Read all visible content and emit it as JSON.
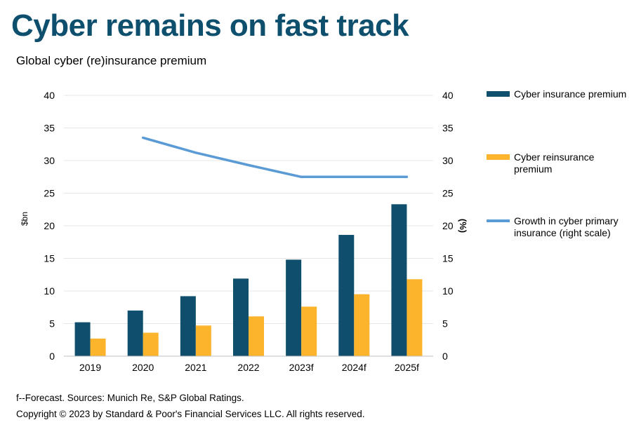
{
  "header": {
    "title": "Cyber remains on fast track",
    "subtitle": "Global cyber (re)insurance premium"
  },
  "footer": {
    "note": "f--Forecast. Sources: Munich Re, S&P Global Ratings.",
    "copyright": "Copyright © 2023 by Standard & Poor's Financial Services LLC. All rights reserved."
  },
  "colors": {
    "title": "#0e4f6e",
    "insurance": "#0f4f6d",
    "reinsurance": "#fbb42c",
    "growth": "#5b9bd5"
  },
  "chart_data": {
    "type": "bar",
    "categories": [
      "2019",
      "2020",
      "2021",
      "2022",
      "2023f",
      "2024f",
      "2025f"
    ],
    "series": [
      {
        "name": "Cyber insurance premium",
        "type": "bar",
        "axis": "left",
        "color": "#0f4f6d",
        "values": [
          5.2,
          7.0,
          9.2,
          11.9,
          14.8,
          18.6,
          23.3
        ]
      },
      {
        "name": "Cyber reinsurance premium",
        "type": "bar",
        "axis": "left",
        "color": "#fbb42c",
        "values": [
          2.7,
          3.6,
          4.7,
          6.1,
          7.6,
          9.5,
          11.8
        ]
      },
      {
        "name": "Growth in cyber primary insurance (right scale)",
        "type": "line",
        "axis": "right",
        "color": "#5b9bd5",
        "values": [
          null,
          33.5,
          31.2,
          29.3,
          27.5,
          27.5,
          27.5
        ]
      }
    ],
    "ylabel": "$bn",
    "ylabel_right": "(%)",
    "ylim": [
      0,
      40
    ],
    "ylim_right": [
      0,
      40
    ],
    "yticks": [
      0,
      5,
      10,
      15,
      20,
      25,
      30,
      35,
      40
    ],
    "grid": true,
    "legend_position": "right"
  }
}
